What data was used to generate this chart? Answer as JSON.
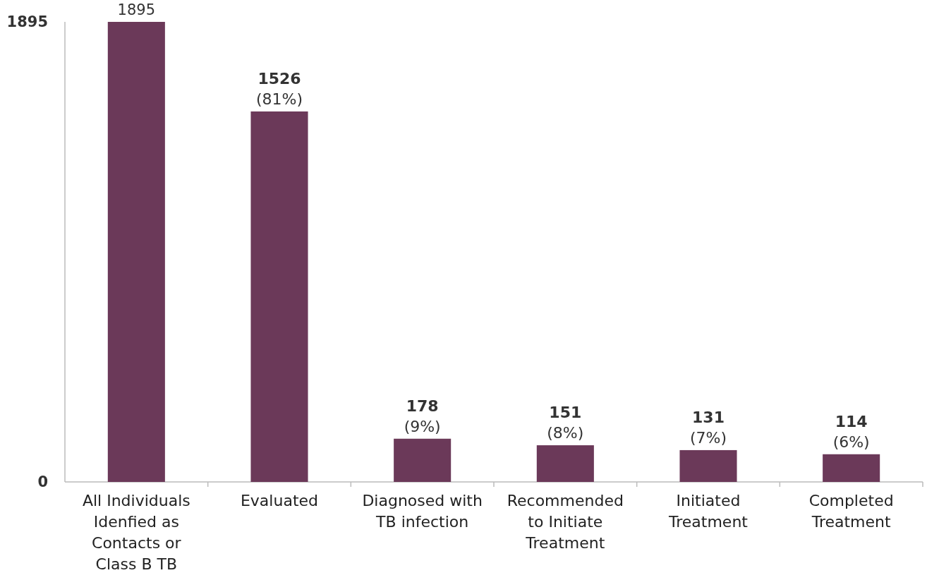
{
  "chart_data": {
    "type": "bar",
    "categories": [
      "All Individuals\nIdenfied as\nContacts or\nClass B TB",
      "Evaluated",
      "Diagnosed with\nTB infection",
      "Recommended\nto Initiate\nTreatment",
      "Initiated\nTreatment",
      "Completed\nTreatment"
    ],
    "values": [
      1895,
      1526,
      178,
      151,
      131,
      114
    ],
    "color": "#6b3959",
    "value_labels": [
      "1895",
      "1526\n(81%)",
      "178\n(9%)",
      "151\n(8%)",
      "131\n(7%)",
      "114\n(6%)"
    ],
    "ylim": [
      0,
      1895
    ],
    "yticks": [
      0,
      1895
    ],
    "grid": false
  }
}
